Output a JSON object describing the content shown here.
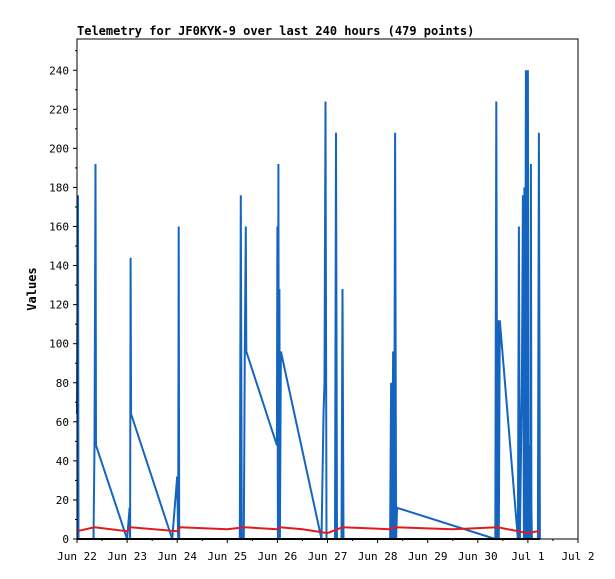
{
  "chart_data": {
    "type": "line",
    "title": "Telemetry for JF0KYK-9 over last 240 hours (479 points)",
    "xlabel": "",
    "ylabel": "Values",
    "x_unit": "day_of_june",
    "xlim": [
      22,
      32
    ],
    "ylim": [
      0,
      256
    ],
    "x_ticks": [
      {
        "x": 22,
        "label": "Jun 22"
      },
      {
        "x": 23,
        "label": "Jun 23"
      },
      {
        "x": 24,
        "label": "Jun 24"
      },
      {
        "x": 25,
        "label": "Jun 25"
      },
      {
        "x": 26,
        "label": "Jun 26"
      },
      {
        "x": 27,
        "label": "Jun 27"
      },
      {
        "x": 28,
        "label": "Jun 28"
      },
      {
        "x": 29,
        "label": "Jun 29"
      },
      {
        "x": 30,
        "label": "Jun 30"
      },
      {
        "x": 31,
        "label": "Jul 1"
      },
      {
        "x": 32,
        "label": "Jul 2"
      }
    ],
    "y_ticks": [
      0,
      20,
      40,
      60,
      80,
      100,
      120,
      140,
      160,
      180,
      200,
      220,
      240
    ],
    "grid": false,
    "series": [
      {
        "color": "#1565c0",
        "x": [
          22.0,
          22.02,
          22.03,
          22.05,
          22.33,
          22.35,
          22.37,
          22.38,
          23.0,
          23.05,
          23.06,
          23.07,
          23.08,
          23.9,
          24.0,
          24.02,
          24.03,
          24.04,
          24.06,
          25.25,
          25.27,
          25.29,
          25.33,
          25.35,
          25.37,
          25.38,
          25.99,
          26.0,
          26.01,
          26.02,
          26.03,
          26.04,
          26.05,
          26.07,
          26.88,
          26.92,
          26.94,
          26.96,
          26.98,
          27.0,
          27.15,
          27.17,
          27.19,
          27.28,
          27.3,
          27.32,
          28.25,
          28.27,
          28.29,
          28.31,
          28.33,
          28.35,
          28.37,
          28.39,
          30.35,
          30.37,
          30.39,
          30.4,
          30.42,
          30.44,
          30.8,
          30.82,
          30.84,
          30.88,
          30.9,
          30.92,
          30.93,
          30.94,
          30.96,
          30.97,
          30.98,
          30.99,
          31.0,
          31.01,
          31.02,
          31.04,
          31.05,
          31.06,
          31.07,
          31.08,
          31.2,
          31.22,
          31.24
        ],
        "y": [
          64,
          176,
          0,
          0,
          0,
          48,
          192,
          48,
          0,
          16,
          0,
          144,
          64,
          0,
          32,
          0,
          160,
          0,
          0,
          0,
          176,
          0,
          0,
          96,
          160,
          96,
          48,
          160,
          0,
          192,
          0,
          128,
          0,
          96,
          0,
          64,
          80,
          224,
          0,
          0,
          0,
          208,
          0,
          0,
          128,
          0,
          0,
          80,
          0,
          96,
          0,
          208,
          0,
          16,
          0,
          224,
          0,
          112,
          0,
          112,
          0,
          160,
          0,
          80,
          176,
          0,
          180,
          0,
          240,
          0,
          144,
          0,
          240,
          0,
          16,
          48,
          0,
          192,
          16,
          0,
          0,
          208,
          0
        ]
      },
      {
        "color": "#e31a1c",
        "x": [
          22.0,
          22.35,
          23.0,
          23.07,
          24.0,
          24.06,
          25.0,
          25.35,
          26.0,
          26.05,
          26.5,
          27.0,
          27.3,
          28.25,
          28.35,
          29.5,
          30.4,
          31.0,
          31.2,
          31.24
        ],
        "y": [
          4,
          6,
          4,
          6,
          4,
          6,
          5,
          6,
          5,
          6,
          5,
          3,
          6,
          5,
          6,
          5,
          6,
          3,
          4,
          3
        ]
      },
      {
        "color": "#000000",
        "x": [
          22.0,
          31.24
        ],
        "y": [
          0,
          0
        ]
      }
    ]
  }
}
